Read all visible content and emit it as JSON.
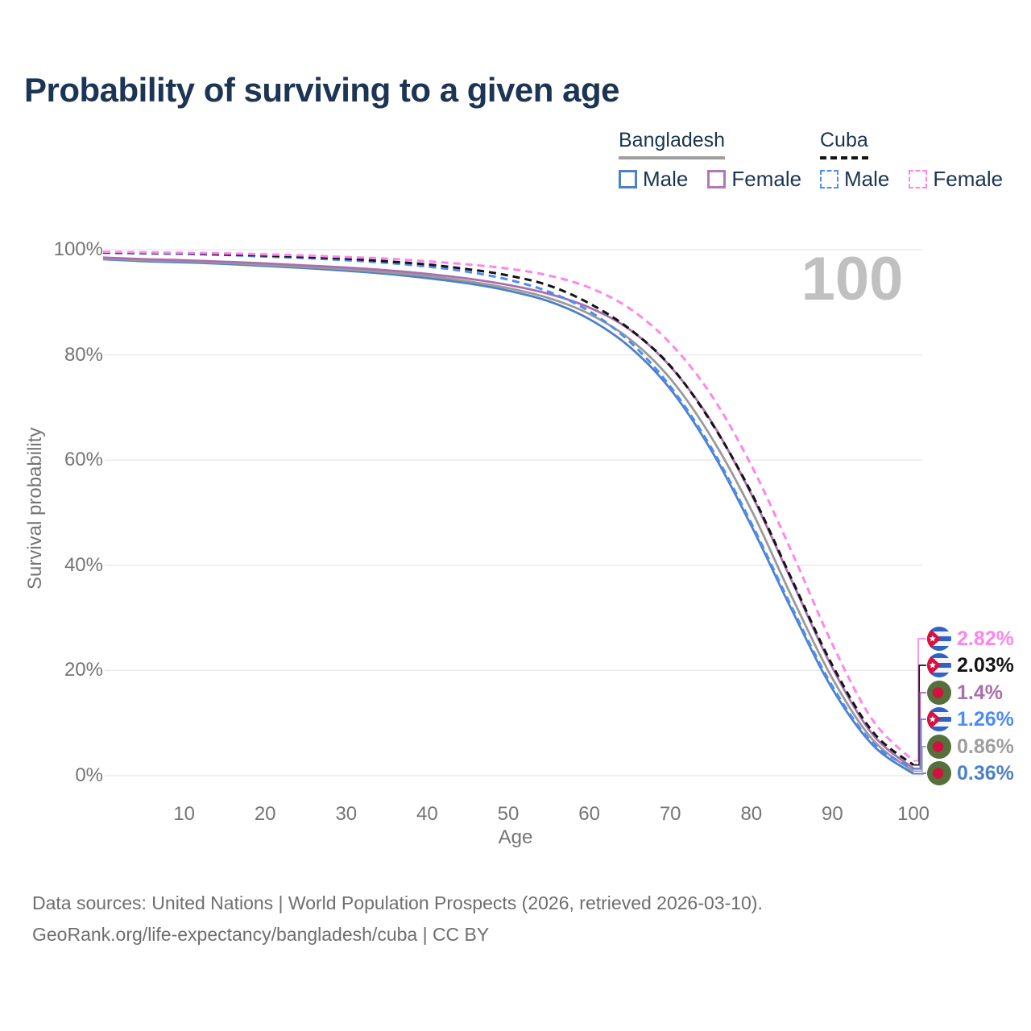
{
  "title": "Probability of surviving to a given age",
  "watermark": "100",
  "legend": {
    "groups": [
      {
        "label": "Bangladesh",
        "underline_style": "solid",
        "underline_color": "#9e9e9e",
        "items": [
          {
            "label": "Male",
            "color": "#4d80c9",
            "dash": false
          },
          {
            "label": "Female",
            "color": "#b277b4",
            "dash": false
          }
        ]
      },
      {
        "label": "Cuba",
        "underline_style": "dashed",
        "underline_color": "#141414",
        "items": [
          {
            "label": "Male",
            "color": "#4d8cf5",
            "dash": true
          },
          {
            "label": "Female",
            "color": "#ff85ea",
            "dash": true
          }
        ]
      }
    ]
  },
  "chart_data": {
    "type": "line",
    "title": "Probability of surviving to a given age",
    "xlabel": "Age",
    "ylabel": "Survival probability",
    "xlim": [
      0,
      100
    ],
    "ylim": [
      0,
      100
    ],
    "grid": "horizontal",
    "x_ticks": [
      10,
      20,
      30,
      40,
      50,
      60,
      70,
      80,
      90,
      100
    ],
    "y_ticks": [
      {
        "value": 0,
        "label": "0%"
      },
      {
        "value": 20,
        "label": "20%"
      },
      {
        "value": 40,
        "label": "40%"
      },
      {
        "value": 60,
        "label": "60%"
      },
      {
        "value": 80,
        "label": "80%"
      },
      {
        "value": 100,
        "label": "100%"
      }
    ],
    "x": [
      0,
      5,
      10,
      15,
      20,
      25,
      30,
      35,
      40,
      45,
      50,
      55,
      60,
      65,
      70,
      75,
      80,
      85,
      90,
      95,
      100
    ],
    "series": [
      {
        "key": "bangladesh_male",
        "name": "Bangladesh Male",
        "color": "#4d80c9",
        "dash": false,
        "values": [
          98.2,
          97.8,
          97.6,
          97.3,
          96.9,
          96.5,
          96.0,
          95.4,
          94.6,
          93.6,
          92.2,
          90.2,
          86.8,
          81.5,
          73.5,
          62.0,
          47.5,
          31.5,
          16.5,
          5.8,
          0.36
        ]
      },
      {
        "key": "bangladesh_all",
        "name": "Bangladesh Both sexes",
        "color": "#9a9a9a",
        "dash": false,
        "values": [
          98.3,
          98.0,
          97.8,
          97.5,
          97.1,
          96.7,
          96.3,
          95.7,
          95.0,
          94.0,
          92.7,
          90.8,
          87.8,
          83.0,
          75.5,
          64.5,
          50.5,
          34.0,
          18.5,
          6.8,
          0.86
        ]
      },
      {
        "key": "bangladesh_female",
        "name": "Bangladesh Female",
        "color": "#aa6fae",
        "dash": false,
        "values": [
          98.5,
          98.2,
          98.0,
          97.7,
          97.4,
          97.0,
          96.6,
          96.1,
          95.4,
          94.5,
          93.3,
          91.6,
          89.0,
          84.8,
          77.8,
          67.5,
          53.5,
          37.0,
          20.5,
          7.8,
          1.4
        ]
      },
      {
        "key": "cuba_male",
        "name": "Cuba Male",
        "color": "#4d8cf5",
        "dash": true,
        "values": [
          99.4,
          99.3,
          99.2,
          99.0,
          98.7,
          98.4,
          98.0,
          97.5,
          96.8,
          95.8,
          94.3,
          92.0,
          88.3,
          82.5,
          74.0,
          62.5,
          48.0,
          32.0,
          17.0,
          6.2,
          1.26
        ]
      },
      {
        "key": "cuba_all",
        "name": "Cuba Both sexes",
        "color": "#141414",
        "dash": true,
        "values": [
          99.5,
          99.4,
          99.3,
          99.1,
          98.9,
          98.6,
          98.3,
          97.8,
          97.2,
          96.3,
          95.1,
          93.2,
          89.8,
          84.9,
          77.9,
          67.3,
          53.8,
          37.3,
          21.0,
          8.3,
          2.03
        ]
      },
      {
        "key": "cuba_female",
        "name": "Cuba Female",
        "color": "#ff85ea",
        "dash": true,
        "values": [
          99.6,
          99.5,
          99.4,
          99.3,
          99.1,
          98.9,
          98.6,
          98.3,
          97.8,
          97.2,
          96.4,
          95.1,
          92.8,
          88.8,
          82.2,
          72.5,
          59.0,
          42.5,
          25.0,
          10.5,
          2.82
        ]
      }
    ]
  },
  "end_labels": [
    {
      "series_key": "cuba_female",
      "icon": "cuba-flag",
      "value": "2.82%",
      "color": "#ff85ea"
    },
    {
      "series_key": "cuba_all",
      "icon": "cuba-flag",
      "value": "2.03%",
      "color": "#141414"
    },
    {
      "series_key": "bangladesh_female",
      "icon": "bangladesh-flag",
      "value": "1.4%",
      "color": "#aa6fae"
    },
    {
      "series_key": "cuba_male",
      "icon": "cuba-flag",
      "value": "1.26%",
      "color": "#4d8cf5"
    },
    {
      "series_key": "bangladesh_all",
      "icon": "bangladesh-flag",
      "value": "0.86%",
      "color": "#9e9e9e"
    },
    {
      "series_key": "bangladesh_male",
      "icon": "bangladesh-flag",
      "value": "0.36%",
      "color": "#4d80c9"
    }
  ],
  "source": {
    "line1": "Data sources: United Nations | World Population Prospects (2026, retrieved 2026-03-10).",
    "line2": "GeoRank.org/life-expectancy/bangladesh/cuba | CC BY"
  }
}
